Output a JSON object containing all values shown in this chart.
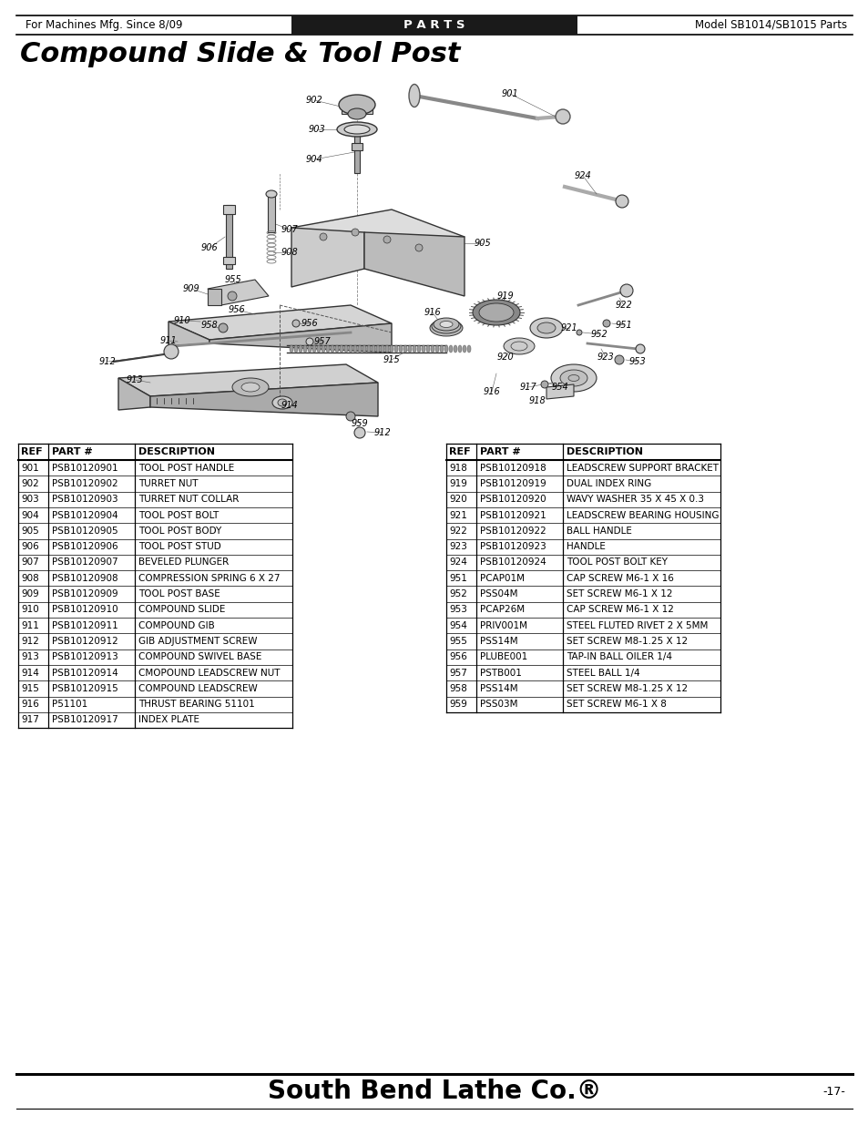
{
  "title": "Compound Slide & Tool Post",
  "header_left": "For Machines Mfg. Since 8/09",
  "header_center": "P A R T S",
  "header_right": "Model SB1014/SB1015 Parts",
  "footer_center": "South Bend Lathe Co.®",
  "footer_right": "-17-",
  "table_headers": [
    "REF",
    "PART #",
    "DESCRIPTION"
  ],
  "table_left": [
    [
      "901",
      "PSB10120901",
      "TOOL POST HANDLE"
    ],
    [
      "902",
      "PSB10120902",
      "TURRET NUT"
    ],
    [
      "903",
      "PSB10120903",
      "TURRET NUT COLLAR"
    ],
    [
      "904",
      "PSB10120904",
      "TOOL POST BOLT"
    ],
    [
      "905",
      "PSB10120905",
      "TOOL POST BODY"
    ],
    [
      "906",
      "PSB10120906",
      "TOOL POST STUD"
    ],
    [
      "907",
      "PSB10120907",
      "BEVELED PLUNGER"
    ],
    [
      "908",
      "PSB10120908",
      "COMPRESSION SPRING 6 X 27"
    ],
    [
      "909",
      "PSB10120909",
      "TOOL POST BASE"
    ],
    [
      "910",
      "PSB10120910",
      "COMPOUND SLIDE"
    ],
    [
      "911",
      "PSB10120911",
      "COMPOUND GIB"
    ],
    [
      "912",
      "PSB10120912",
      "GIB ADJUSTMENT SCREW"
    ],
    [
      "913",
      "PSB10120913",
      "COMPOUND SWIVEL BASE"
    ],
    [
      "914",
      "PSB10120914",
      "CMOPOUND LEADSCREW NUT"
    ],
    [
      "915",
      "PSB10120915",
      "COMPOUND LEADSCREW"
    ],
    [
      "916",
      "P51101",
      "THRUST BEARING 51101"
    ],
    [
      "917",
      "PSB10120917",
      "INDEX PLATE"
    ]
  ],
  "table_right": [
    [
      "918",
      "PSB10120918",
      "LEADSCREW SUPPORT BRACKET"
    ],
    [
      "919",
      "PSB10120919",
      "DUAL INDEX RING"
    ],
    [
      "920",
      "PSB10120920",
      "WAVY WASHER 35 X 45 X 0.3"
    ],
    [
      "921",
      "PSB10120921",
      "LEADSCREW BEARING HOUSING"
    ],
    [
      "922",
      "PSB10120922",
      "BALL HANDLE"
    ],
    [
      "923",
      "PSB10120923",
      "HANDLE"
    ],
    [
      "924",
      "PSB10120924",
      "TOOL POST BOLT KEY"
    ],
    [
      "951",
      "PCAP01M",
      "CAP SCREW M6-1 X 16"
    ],
    [
      "952",
      "PSS04M",
      "SET SCREW M6-1 X 12"
    ],
    [
      "953",
      "PCAP26M",
      "CAP SCREW M6-1 X 12"
    ],
    [
      "954",
      "PRIV001M",
      "STEEL FLUTED RIVET 2 X 5MM"
    ],
    [
      "955",
      "PSS14M",
      "SET SCREW M8-1.25 X 12"
    ],
    [
      "956",
      "PLUBE001",
      "TAP-IN BALL OILER 1/4"
    ],
    [
      "957",
      "PSTB001",
      "STEEL BALL 1/4"
    ],
    [
      "958",
      "PSS14M",
      "SET SCREW M8-1.25 X 12"
    ],
    [
      "959",
      "PSS03M",
      "SET SCREW M6-1 X 8"
    ]
  ],
  "bg_color": "#ffffff",
  "header_bg": "#1a1a1a",
  "header_text_color": "#ffffff",
  "text_color": "#000000",
  "title_fontsize": 22,
  "header_fontsize": 8.5,
  "table_fontsize": 7.5,
  "diagram_stroke": "#333333",
  "diagram_fill": "#e8e8e8",
  "diagram_fill2": "#d0d0d0",
  "diagram_dark": "#555555"
}
